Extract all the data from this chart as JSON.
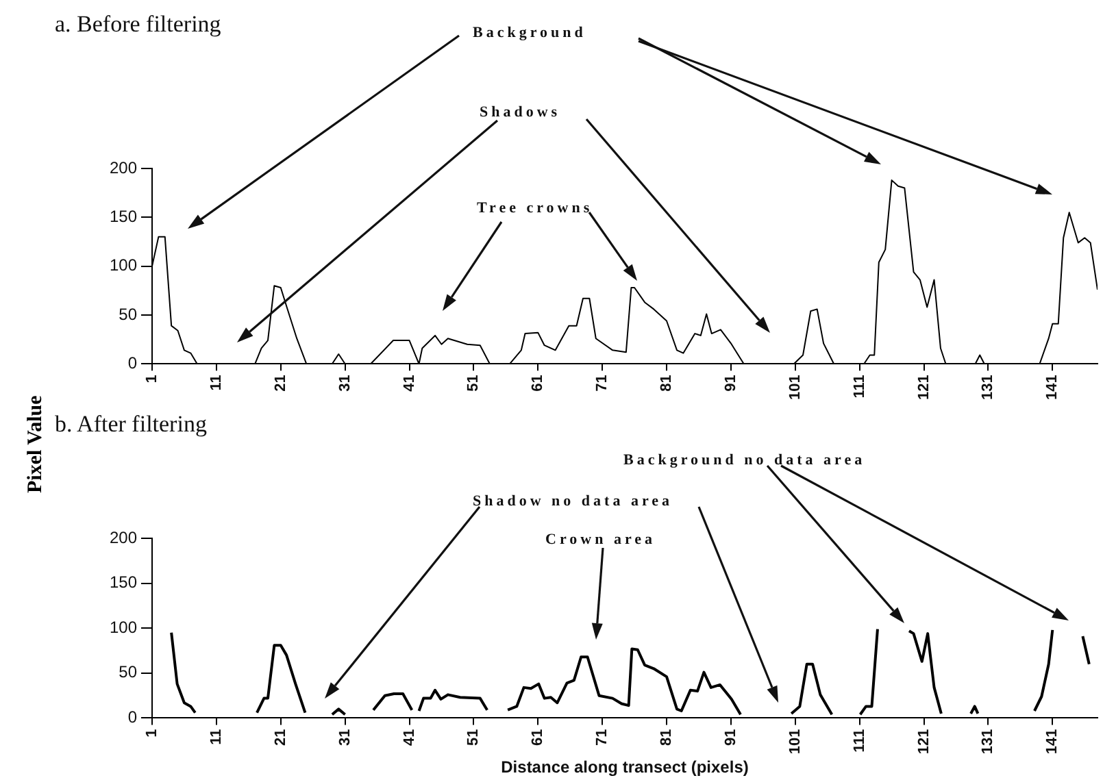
{
  "chart_data": [
    {
      "type": "line",
      "title": "a. Before filtering",
      "ylabel": "Pixel Value",
      "xlim": [
        1,
        148
      ],
      "xticks": [
        1,
        11,
        21,
        31,
        41,
        51,
        61,
        71,
        81,
        91,
        101,
        111,
        121,
        131,
        141
      ],
      "ylim": [
        0,
        200
      ],
      "yticks": [
        0,
        50,
        100,
        150,
        200
      ],
      "grid": false,
      "legend": false,
      "marker": "none",
      "line_style": "solid",
      "annotations": [
        "Background",
        "Shadows",
        "Tree crowns"
      ],
      "series": [
        {
          "color": "#000000",
          "x": [
            1,
            2,
            3,
            4,
            5,
            6,
            7,
            8,
            17,
            18,
            19,
            20,
            21,
            22,
            23.5,
            25,
            29,
            30,
            31,
            35,
            38.5,
            41,
            42.5,
            43,
            45,
            46,
            47,
            50,
            52,
            53.5,
            56.6,
            58.4,
            59,
            61,
            62,
            63.7,
            65.8,
            67,
            68,
            69,
            70,
            72.6,
            74.7,
            75.5,
            76,
            77.6,
            79,
            81,
            82.6,
            83.6,
            85.4,
            86.3,
            87.2,
            88,
            89.4,
            91,
            93,
            100.8,
            102.2,
            103.4,
            104.4,
            105.4,
            107,
            111.7,
            112.6,
            113.3,
            114,
            115,
            116,
            117,
            118,
            119.4,
            120.4,
            121.5,
            122.6,
            123.6,
            124.4,
            129,
            129.7,
            130.4,
            139,
            140.4,
            141,
            141.9,
            142.7,
            143.6,
            145,
            146,
            146.9,
            148
          ],
          "values": [
            100,
            130,
            130,
            39,
            34,
            14,
            11,
            0,
            0,
            16,
            24,
            80,
            78,
            57,
            26,
            0,
            0,
            10,
            0,
            0,
            24,
            24,
            0,
            16,
            29,
            20,
            26,
            20,
            19,
            0,
            0,
            14,
            31,
            32,
            19,
            14,
            39,
            39,
            67,
            67,
            26,
            14,
            12,
            78,
            78,
            63,
            56,
            44,
            14,
            11,
            31,
            29,
            51,
            31,
            35,
            21,
            0,
            0,
            9,
            54,
            56,
            21,
            0,
            0,
            9,
            9,
            104,
            117,
            188,
            182,
            180,
            94,
            86,
            58,
            86,
            16,
            0,
            0,
            9,
            0,
            0,
            26,
            41,
            41,
            129,
            155,
            124,
            129,
            124,
            76
          ]
        }
      ]
    },
    {
      "type": "line",
      "title": "b. After filtering",
      "xlabel": "Distance along transect (pixels)",
      "xlim": [
        1,
        148
      ],
      "xticks": [
        1,
        11,
        21,
        31,
        41,
        51,
        61,
        71,
        81,
        91,
        101,
        111,
        121,
        131,
        141
      ],
      "ylim": [
        0,
        200
      ],
      "yticks": [
        0,
        50,
        100,
        150,
        200
      ],
      "grid": false,
      "legend": false,
      "marker": "none",
      "line_style": "solid",
      "annotations": [
        "Background no data area",
        "Shadow no data area",
        "Crown area"
      ],
      "series": [
        {
          "color": "#000000",
          "x": [
            4,
            4.9,
            6,
            7,
            7.7,
            12,
            17.3,
            18.4,
            19,
            20,
            21,
            21.9,
            23.3,
            24.8,
            27,
            29,
            30,
            31,
            33,
            35.4,
            37.2,
            38.6,
            40,
            41.4,
            42,
            42.5,
            43.2,
            44.3,
            45,
            45.9,
            47,
            48.9,
            52,
            53.1,
            55,
            56.3,
            57.7,
            58.8,
            59.9,
            61.1,
            62,
            63,
            64,
            65.5,
            66.6,
            67.7,
            68.7,
            70.5,
            72.6,
            74,
            75.1,
            75.6,
            76.5,
            77.6,
            79,
            81,
            82.6,
            83.3,
            84.7,
            85.8,
            86.8,
            87.9,
            89.3,
            91.1,
            92.5,
            96,
            100.4,
            101.7,
            102.8,
            103.7,
            104.9,
            106.7,
            109,
            111.1,
            112,
            112.9,
            113.8,
            116,
            118.7,
            119.4,
            120.7,
            121.6,
            122.6,
            123.7,
            126,
            128.3,
            128.9,
            129.4,
            134,
            138.2,
            139.3,
            140.4,
            141,
            143,
            145.7,
            146.7
          ],
          "values": [
            95,
            38,
            17,
            13,
            6,
            null,
            6,
            22,
            22,
            81,
            81,
            70,
            38,
            6,
            null,
            4,
            10,
            4,
            null,
            9,
            25,
            27,
            27,
            9,
            null,
            8,
            22,
            22,
            31,
            21,
            26,
            23,
            22,
            9,
            null,
            9,
            13,
            34,
            33,
            38,
            22,
            23,
            17,
            39,
            42,
            68,
            68,
            25,
            22,
            16,
            14,
            77,
            76,
            59,
            55,
            46,
            10,
            8,
            31,
            30,
            51,
            34,
            37,
            21,
            4,
            null,
            5,
            13,
            60,
            60,
            26,
            4,
            null,
            4,
            13,
            13,
            99,
            null,
            97,
            94,
            63,
            94,
            34,
            5,
            null,
            5,
            13,
            5,
            null,
            8,
            24,
            60,
            98,
            null,
            91,
            60
          ]
        }
      ]
    }
  ]
}
